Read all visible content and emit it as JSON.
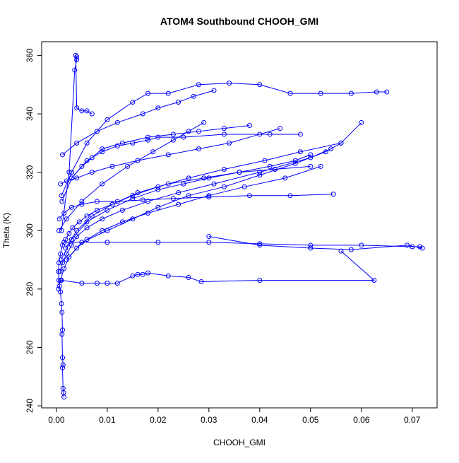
{
  "chart_data": {
    "type": "scatter",
    "title": "ATOM4 Southbound CHOOH_GMI",
    "xlabel": "CHOOH_GMI",
    "ylabel": "Theta (K)",
    "xlim": [
      -0.0029,
      0.0749
    ],
    "ylim": [
      239.3,
      364.7
    ],
    "x_ticks": [
      0.0,
      0.01,
      0.02,
      0.03,
      0.04,
      0.05,
      0.06,
      0.07
    ],
    "x_tick_labels": [
      "0.00",
      "0.01",
      "0.02",
      "0.03",
      "0.04",
      "0.05",
      "0.06",
      "0.07"
    ],
    "y_ticks": [
      240,
      260,
      280,
      300,
      320,
      340,
      360
    ],
    "y_tick_labels": [
      "240",
      "260",
      "280",
      "300",
      "320",
      "340",
      "360"
    ],
    "grid": false,
    "color": "#0000ff",
    "marker": "open-circle",
    "connected": true,
    "series": [
      {
        "x": [
          0.0015,
          0.0014,
          0.0013,
          0.0012,
          0.0013,
          0.0012,
          0.0011,
          0.0012,
          0.0011,
          0.001,
          0.0008,
          0.0006,
          0.0005,
          0.0004,
          0.0005,
          0.0008,
          0.0012,
          0.0018,
          0.0025,
          0.0032,
          0.0045,
          0.006,
          0.008,
          0.011,
          0.015,
          0.02,
          0.026,
          0.033,
          0.041,
          0.048,
          0.056,
          0.06
        ],
        "y": [
          243,
          244.5,
          246,
          253,
          254,
          256.5,
          264.5,
          266,
          272,
          275,
          279,
          281,
          283,
          286,
          289,
          292,
          295,
          297,
          299,
          301,
          303,
          305,
          307,
          309,
          312,
          315,
          318,
          321,
          324,
          327,
          330,
          337
        ]
      },
      {
        "x": [
          0.0007,
          0.0012,
          0.002,
          0.003,
          0.004,
          0.006,
          0.009,
          0.013,
          0.018,
          0.024,
          0.031,
          0.04,
          0.05,
          0.054
        ],
        "y": [
          286,
          289,
          292,
          295,
          298,
          301,
          304,
          307,
          310,
          313,
          316,
          320,
          325,
          328
        ]
      },
      {
        "x": [
          0.0004,
          0.0008,
          0.0015,
          0.0025,
          0.004,
          0.006,
          0.009,
          0.013,
          0.018,
          0.024,
          0.03,
          0.037,
          0.045,
          0.052
        ],
        "y": [
          280,
          283,
          287,
          291,
          294,
          297,
          300,
          303,
          306,
          309,
          312,
          315,
          318,
          322
        ]
      },
      {
        "x": [
          0.001,
          0.0025,
          0.0036,
          0.004,
          0.004,
          0.0038,
          0.004,
          0.005,
          0.006,
          0.007
        ],
        "y": [
          300,
          320,
          355,
          358.5,
          359.5,
          360,
          342,
          341,
          341,
          340
        ]
      },
      {
        "x": [
          0.001,
          0.003,
          0.006,
          0.01,
          0.015,
          0.018,
          0.022,
          0.028,
          0.034,
          0.04,
          0.046,
          0.052,
          0.058,
          0.063,
          0.065
        ],
        "y": [
          312,
          320,
          330,
          338,
          344,
          347,
          347,
          350,
          350.5,
          350,
          347,
          347,
          347,
          347.5,
          347.5
        ]
      },
      {
        "x": [
          0.0015,
          0.01,
          0.02,
          0.03,
          0.04,
          0.05,
          0.06,
          0.07,
          0.0715,
          0.072,
          0.069,
          0.058,
          0.05,
          0.04,
          0.03
        ],
        "y": [
          296,
          296,
          296,
          296,
          295.5,
          295,
          295,
          294.5,
          294.5,
          294,
          295,
          293.5,
          294,
          295,
          298
        ]
      },
      {
        "x": [
          0.001,
          0.005,
          0.008,
          0.01,
          0.012,
          0.015,
          0.016,
          0.017,
          0.018,
          0.022,
          0.026,
          0.0285,
          0.04,
          0.0625,
          0.056
        ],
        "y": [
          283,
          282,
          282,
          282,
          282,
          284.5,
          285,
          285,
          285.5,
          284.5,
          284,
          282.5,
          283,
          283,
          293
        ]
      },
      {
        "x": [
          0.002,
          0.005,
          0.01,
          0.015,
          0.02,
          0.026,
          0.033,
          0.04,
          0.047,
          0.053,
          0.056
        ],
        "y": [
          290,
          296,
          300,
          304,
          308,
          312,
          315,
          319,
          323,
          327,
          330
        ]
      },
      {
        "x": [
          0.0008,
          0.002,
          0.004,
          0.007,
          0.011,
          0.016,
          0.022,
          0.028,
          0.034,
          0.04,
          0.044
        ],
        "y": [
          316,
          317,
          318,
          320,
          322,
          324,
          326,
          328,
          330,
          333,
          335
        ]
      },
      {
        "x": [
          0.0006,
          0.0015,
          0.003,
          0.005,
          0.008,
          0.012,
          0.017,
          0.023,
          0.03,
          0.038,
          0.046,
          0.0545
        ],
        "y": [
          304,
          306,
          308,
          309,
          310,
          310,
          310.5,
          311,
          311.5,
          312,
          312,
          312.5
        ]
      },
      {
        "x": [
          0.0009,
          0.003,
          0.006,
          0.01,
          0.015,
          0.02,
          0.025,
          0.03,
          0.036,
          0.042,
          0.047,
          0.05
        ],
        "y": [
          290,
          297,
          303,
          307,
          311,
          314,
          316,
          318,
          320,
          322,
          324,
          326
        ]
      },
      {
        "x": [
          0.0012,
          0.004,
          0.008,
          0.012,
          0.017,
          0.02,
          0.024,
          0.027,
          0.031
        ],
        "y": [
          326,
          330,
          334,
          337,
          340,
          342,
          344,
          346,
          348
        ]
      },
      {
        "x": [
          0.0005,
          0.002,
          0.005,
          0.009,
          0.014,
          0.019,
          0.023,
          0.026,
          0.029
        ],
        "y": [
          300,
          304,
          310,
          316,
          322,
          327,
          331,
          334,
          337
        ]
      },
      {
        "x": [
          0.0011,
          0.003,
          0.006,
          0.009,
          0.012,
          0.015,
          0.018,
          0.02,
          0.025,
          0.033,
          0.042,
          0.048
        ],
        "y": [
          310,
          318,
          324,
          327,
          329,
          330,
          331,
          332,
          332,
          333,
          333,
          333
        ]
      },
      {
        "x": [
          0.0018,
          0.004,
          0.007,
          0.011,
          0.016,
          0.022,
          0.029,
          0.036,
          0.043,
          0.05
        ],
        "y": [
          294,
          300,
          305,
          309,
          313,
          316,
          318,
          320,
          321,
          322
        ]
      },
      {
        "x": [
          0.003,
          0.005,
          0.007,
          0.009,
          0.013,
          0.018,
          0.023,
          0.028,
          0.033,
          0.038
        ],
        "y": [
          318,
          322,
          325,
          328,
          330,
          332,
          333,
          334,
          335,
          336
        ]
      }
    ]
  }
}
